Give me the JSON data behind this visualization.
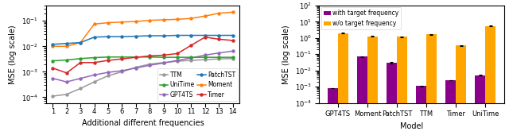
{
  "line_x": [
    1,
    2,
    3,
    4,
    5,
    6,
    7,
    8,
    9,
    10,
    11,
    12,
    13,
    14
  ],
  "TTM": [
    0.00011,
    0.00013,
    0.00022,
    0.0004,
    0.0007,
    0.001,
    0.0015,
    0.002,
    0.0023,
    0.0026,
    0.0028,
    0.003,
    0.0032,
    0.0033
  ],
  "GPT4TS": [
    0.00055,
    0.0004,
    0.00055,
    0.00075,
    0.00095,
    0.0011,
    0.0014,
    0.0018,
    0.0022,
    0.0028,
    0.0035,
    0.0045,
    0.0055,
    0.0065
  ],
  "Moment": [
    0.01,
    0.01,
    0.014,
    0.075,
    0.085,
    0.09,
    0.095,
    0.105,
    0.11,
    0.115,
    0.125,
    0.155,
    0.2,
    0.22
  ],
  "UniTime": [
    0.0027,
    0.0029,
    0.0033,
    0.0036,
    0.0038,
    0.0038,
    0.0038,
    0.0038,
    0.0037,
    0.0037,
    0.0037,
    0.0037,
    0.0037,
    0.0037
  ],
  "PatchTST": [
    0.012,
    0.013,
    0.014,
    0.023,
    0.024,
    0.024,
    0.025,
    0.026,
    0.026,
    0.027,
    0.027,
    0.027,
    0.027,
    0.027
  ],
  "Timer": [
    0.0014,
    0.0009,
    0.0023,
    0.0023,
    0.0028,
    0.0032,
    0.0037,
    0.0042,
    0.0045,
    0.0052,
    0.011,
    0.023,
    0.019,
    0.017
  ],
  "line_colors": {
    "TTM": "#999999",
    "GPT4TS": "#9467bd",
    "Moment": "#ff7f0e",
    "UniTime": "#2ca02c",
    "PatchTST": "#1f77b4",
    "Timer": "#d62728"
  },
  "bar_models": [
    "GPT4TS",
    "Moment",
    "PatchTST",
    "TTM",
    "Timer",
    "UniTime"
  ],
  "bar_with": [
    0.0008,
    0.07,
    0.03,
    0.0011,
    0.0025,
    0.005
  ],
  "bar_without": [
    2.0,
    1.3,
    1.2,
    1.7,
    0.35,
    5.5
  ],
  "bar_with_err": [
    3e-05,
    0.004,
    0.002,
    5e-05,
    0.0001,
    0.0002
  ],
  "bar_without_err": [
    0.07,
    0.1,
    0.1,
    0.08,
    0.015,
    0.25
  ],
  "bar_color_with": "#8b008b",
  "bar_color_without": "#ffa500",
  "xlabel_left": "Additional different frequencies",
  "ylabel": "MSE (log scale)",
  "xlabel_right": "Model"
}
